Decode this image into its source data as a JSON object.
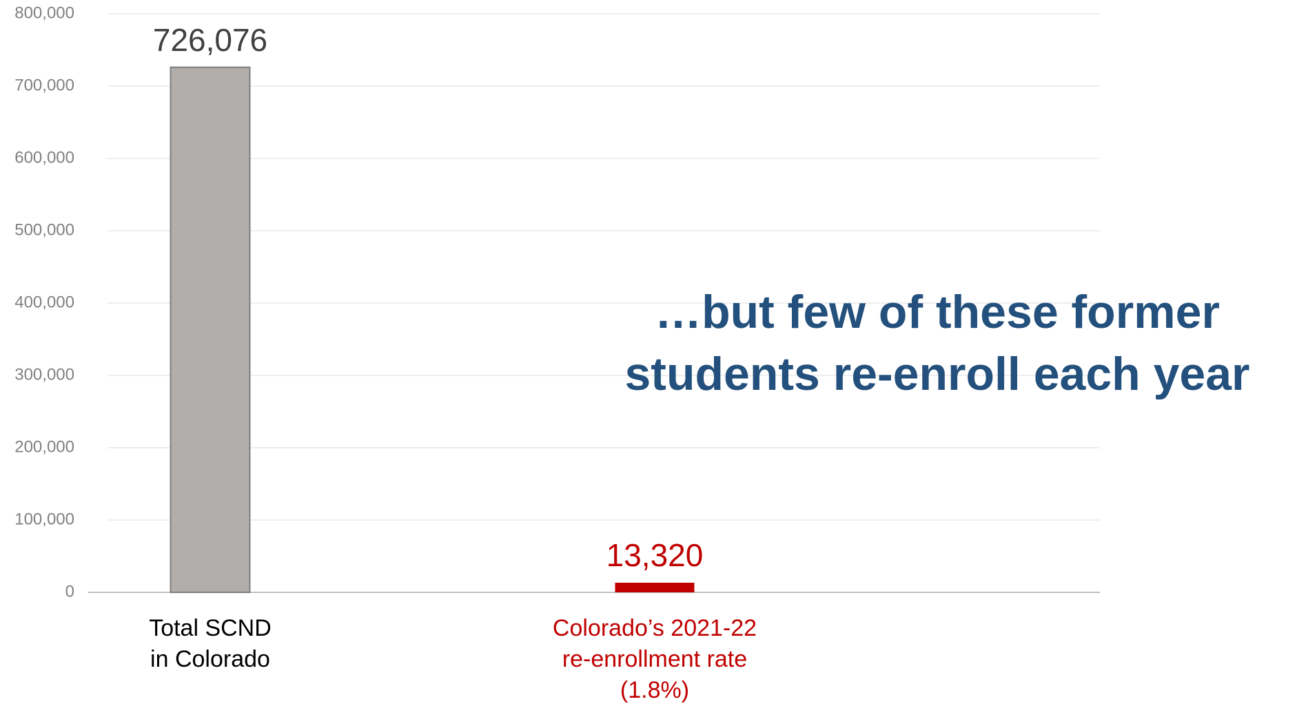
{
  "chart_data": {
    "type": "bar",
    "annotation": "…but few of these former\nstudents re-enroll each year",
    "categories": [
      "Total SCND\nin Colorado",
      "Colorado’s 2021-22\nre-enrollment rate\n(1.8%)"
    ],
    "series": [
      {
        "name": null,
        "values": [
          726076,
          13320
        ],
        "value_labels": [
          "726,076",
          "13,320"
        ],
        "colors": [
          "#b0adab",
          "#c00000"
        ]
      }
    ],
    "ylim": [
      0,
      800000
    ],
    "yticks": [
      0,
      {
        "value": 100000,
        "label": "100,000"
      },
      {
        "value": 200000,
        "label": "200,000"
      },
      {
        "value": 300000,
        "label": "300,000"
      },
      {
        "value": 400000,
        "label": "400,000"
      },
      {
        "value": 500000,
        "label": "500,000"
      },
      {
        "value": 600000,
        "label": "600,000"
      },
      {
        "value": 700000,
        "label": "700,000"
      },
      {
        "value": 800000,
        "label": "800,000"
      }
    ],
    "grid": true
  }
}
